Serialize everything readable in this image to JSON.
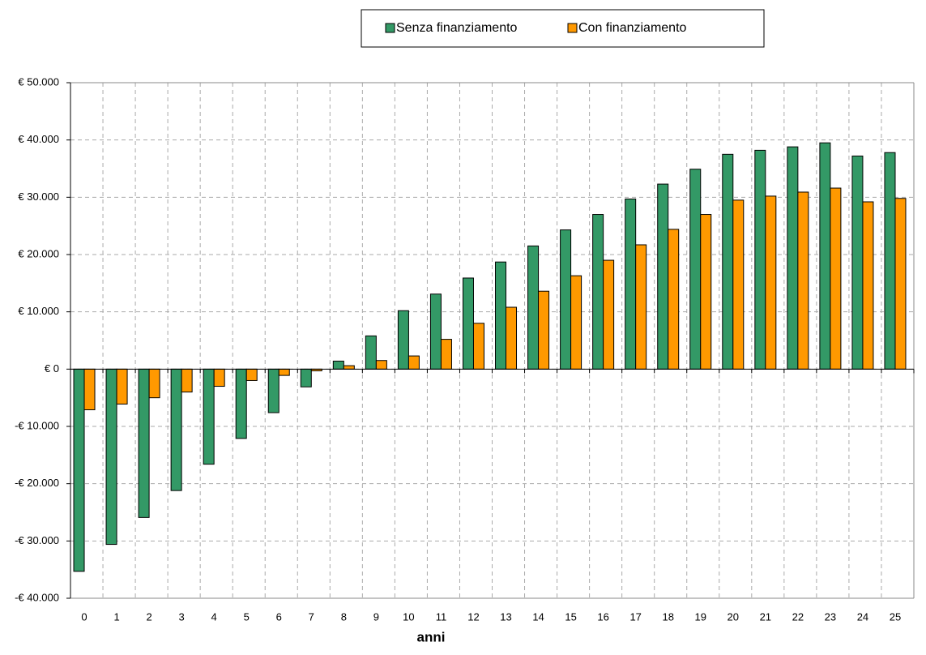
{
  "chart_data": {
    "type": "bar",
    "x_label": "anni",
    "categories": [
      "0",
      "1",
      "2",
      "3",
      "4",
      "5",
      "6",
      "7",
      "8",
      "9",
      "10",
      "11",
      "12",
      "13",
      "14",
      "15",
      "16",
      "17",
      "18",
      "19",
      "20",
      "21",
      "22",
      "23",
      "24",
      "25"
    ],
    "series": [
      {
        "name": "Senza finanziamento",
        "color": "#339966",
        "values": [
          -35300,
          -30600,
          -25900,
          -21200,
          -16600,
          -12100,
          -7600,
          -3100,
          1400,
          5800,
          10200,
          13100,
          15900,
          18700,
          21500,
          24300,
          27000,
          29700,
          32300,
          34900,
          37500,
          38200,
          38800,
          39500,
          37200,
          37800
        ]
      },
      {
        "name": "Con finanziamento",
        "color": "#ff9900",
        "values": [
          -7100,
          -6100,
          -5000,
          -4000,
          -3000,
          -2000,
          -1100,
          -300,
          600,
          1500,
          2300,
          5200,
          8000,
          10800,
          13600,
          16300,
          19000,
          21700,
          24400,
          27000,
          29500,
          30200,
          30900,
          31600,
          29200,
          29800
        ]
      }
    ],
    "ylim": [
      -40000,
      50000
    ],
    "yticks": [
      {
        "value": -40000,
        "label": "-€ 40.000"
      },
      {
        "value": -30000,
        "label": "-€ 30.000"
      },
      {
        "value": -20000,
        "label": "-€ 20.000"
      },
      {
        "value": -10000,
        "label": "-€ 10.000"
      },
      {
        "value": 0,
        "label": "€ 0"
      },
      {
        "value": 10000,
        "label": "€ 10.000"
      },
      {
        "value": 20000,
        "label": "€ 20.000"
      },
      {
        "value": 30000,
        "label": "€ 30.000"
      },
      {
        "value": 40000,
        "label": "€ 40.000"
      },
      {
        "value": 50000,
        "label": "€ 50.000"
      }
    ],
    "grid": true,
    "legend": "top"
  }
}
